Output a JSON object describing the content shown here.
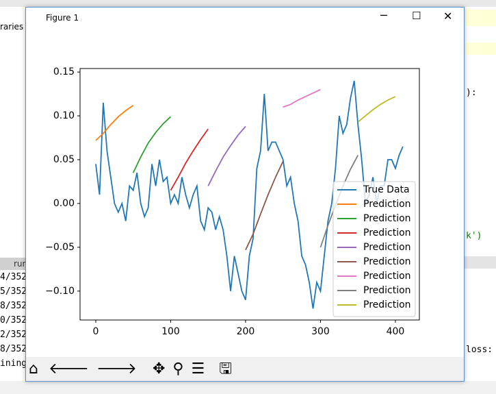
{
  "window": {
    "title": "Figure 1"
  },
  "background": {
    "left_top": "raries",
    "tab": "run",
    "console": [
      "4/352",
      "5/352",
      "8/352",
      "0/352",
      "2/352",
      "8/352",
      "ining"
    ],
    "right_code": [
      "):",
      "k')"
    ],
    "right_console": "loss:"
  },
  "chart_data": {
    "type": "line",
    "xlim": [
      -21,
      432
    ],
    "ylim": [
      -0.133,
      0.154
    ],
    "xticks": [
      0,
      100,
      200,
      300,
      400
    ],
    "yticks": [
      {
        "value": -0.1,
        "label": "−0.10"
      },
      {
        "value": -0.05,
        "label": "−0.05"
      },
      {
        "value": 0,
        "label": "0.00"
      },
      0.05,
      {
        "value": 0.1,
        "label": "0.10"
      },
      0.15
    ],
    "legend": "lower right",
    "series": [
      {
        "name": "True Data",
        "color": "#1f77b4",
        "x": [
          0,
          5,
          10,
          15,
          20,
          25,
          30,
          35,
          40,
          45,
          50,
          55,
          60,
          65,
          70,
          75,
          80,
          85,
          90,
          95,
          100,
          105,
          110,
          115,
          120,
          125,
          130,
          135,
          140,
          145,
          150,
          155,
          160,
          165,
          170,
          175,
          180,
          185,
          190,
          195,
          200,
          205,
          210,
          215,
          220,
          225,
          230,
          235,
          240,
          245,
          250,
          255,
          260,
          265,
          270,
          275,
          280,
          285,
          290,
          295,
          300,
          305,
          310,
          315,
          320,
          325,
          330,
          335,
          340,
          345,
          350,
          355,
          360,
          365,
          370,
          375,
          380,
          385,
          390,
          395,
          400,
          405,
          410
        ],
        "values": [
          0.045,
          0.01,
          0.115,
          0.06,
          0.03,
          0.0,
          -0.01,
          0.0,
          -0.02,
          0.02,
          0.015,
          0.035,
          0.0,
          -0.015,
          -0.005,
          0.045,
          0.02,
          0.05,
          0.025,
          0.03,
          0.0,
          0.01,
          0.0,
          0.03,
          0.01,
          -0.005,
          0.01,
          0.02,
          -0.02,
          -0.03,
          -0.005,
          -0.01,
          -0.03,
          -0.015,
          -0.03,
          -0.06,
          -0.1,
          -0.06,
          -0.08,
          -0.1,
          -0.11,
          -0.06,
          -0.04,
          0.04,
          0.06,
          0.125,
          0.06,
          0.07,
          0.07,
          0.06,
          0.05,
          0.02,
          0.03,
          0.0,
          -0.02,
          -0.06,
          -0.07,
          -0.09,
          -0.12,
          -0.09,
          -0.1,
          -0.06,
          -0.02,
          0.0,
          0.04,
          0.1,
          0.08,
          0.09,
          0.12,
          0.14,
          0.09,
          0.05,
          0.0,
          0.01,
          0.03,
          0.0,
          0.02,
          0.02,
          0.05,
          0.05,
          0.04,
          0.055,
          0.065
        ]
      },
      {
        "name": "Prediction",
        "color": "#ff7f0e",
        "x": [
          0,
          10,
          20,
          30,
          40,
          50
        ],
        "values": [
          0.072,
          0.08,
          0.09,
          0.099,
          0.106,
          0.112
        ]
      },
      {
        "name": "Prediction",
        "color": "#2ca02c",
        "x": [
          50,
          60,
          70,
          80,
          90,
          100
        ],
        "values": [
          0.035,
          0.053,
          0.069,
          0.081,
          0.091,
          0.099
        ]
      },
      {
        "name": "Prediction",
        "color": "#d62728",
        "x": [
          100,
          110,
          120,
          130,
          140,
          150
        ],
        "values": [
          0.015,
          0.03,
          0.046,
          0.06,
          0.073,
          0.085
        ]
      },
      {
        "name": "Prediction",
        "color": "#9467bd",
        "x": [
          150,
          160,
          170,
          180,
          190,
          200
        ],
        "values": [
          0.02,
          0.037,
          0.053,
          0.066,
          0.078,
          0.088
        ]
      },
      {
        "name": "Prediction",
        "color": "#8c564b",
        "x": [
          200,
          210,
          220,
          230,
          240,
          250
        ],
        "values": [
          -0.053,
          -0.035,
          -0.012,
          0.01,
          0.03,
          0.048
        ]
      },
      {
        "name": "Prediction",
        "color": "#e377c2",
        "x": [
          250,
          260,
          270,
          280,
          290,
          300
        ],
        "values": [
          0.11,
          0.113,
          0.118,
          0.122,
          0.126,
          0.13
        ]
      },
      {
        "name": "Prediction",
        "color": "#7f7f7f",
        "x": [
          300,
          310,
          320,
          330,
          340,
          350
        ],
        "values": [
          -0.05,
          -0.025,
          -0.002,
          0.02,
          0.039,
          0.055
        ]
      },
      {
        "name": "Prediction",
        "color": "#bcbd22",
        "x": [
          350,
          360,
          370,
          380,
          390,
          400
        ],
        "values": [
          0.093,
          0.1,
          0.107,
          0.113,
          0.118,
          0.122
        ]
      }
    ]
  }
}
